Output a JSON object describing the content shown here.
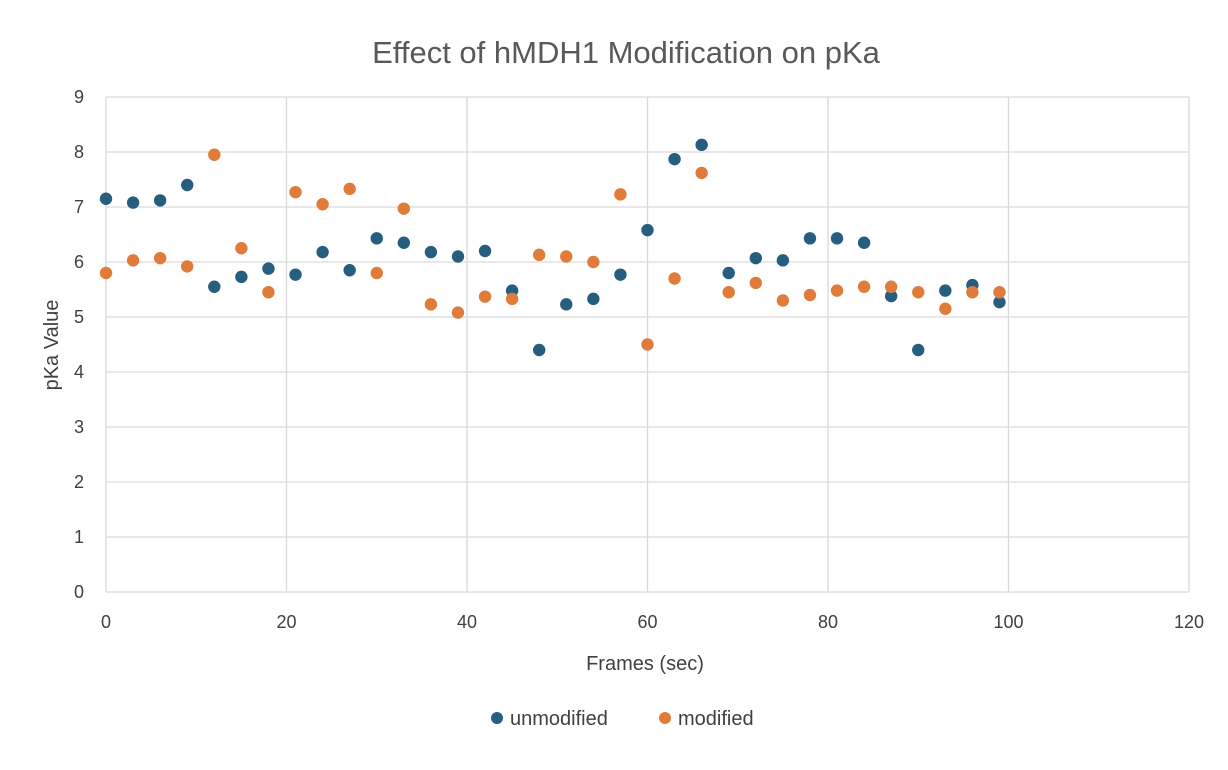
{
  "chart_data": {
    "type": "scatter",
    "title": "Effect of hMDH1 Modification on pKa",
    "xlabel": "Frames (sec)",
    "ylabel": "pKa Value",
    "xlim": [
      0,
      120
    ],
    "ylim": [
      0,
      9
    ],
    "xticks": [
      "0",
      "20",
      "40",
      "60",
      "80",
      "100",
      "120"
    ],
    "yticks": [
      "0",
      "1",
      "2",
      "3",
      "4",
      "5",
      "6",
      "7",
      "8",
      "9"
    ],
    "grid": true,
    "legend_position": "bottom",
    "series": [
      {
        "name": "unmodified",
        "color": "#255e7f",
        "points": [
          [
            0,
            7.15
          ],
          [
            3,
            7.08
          ],
          [
            6,
            7.12
          ],
          [
            9,
            7.4
          ],
          [
            12,
            5.55
          ],
          [
            15,
            5.73
          ],
          [
            18,
            5.88
          ],
          [
            21,
            5.77
          ],
          [
            24,
            6.18
          ],
          [
            27,
            5.85
          ],
          [
            30,
            6.43
          ],
          [
            33,
            6.35
          ],
          [
            36,
            6.18
          ],
          [
            39,
            6.1
          ],
          [
            42,
            6.2
          ],
          [
            45,
            5.48
          ],
          [
            48,
            4.4
          ],
          [
            51,
            5.23
          ],
          [
            54,
            5.33
          ],
          [
            57,
            5.77
          ],
          [
            60,
            6.58
          ],
          [
            63,
            7.87
          ],
          [
            66,
            8.13
          ],
          [
            69,
            5.8
          ],
          [
            72,
            6.07
          ],
          [
            75,
            6.03
          ],
          [
            78,
            6.43
          ],
          [
            81,
            6.43
          ],
          [
            84,
            6.35
          ],
          [
            87,
            5.38
          ],
          [
            90,
            4.4
          ],
          [
            93,
            5.48
          ],
          [
            96,
            5.58
          ],
          [
            99,
            5.27
          ]
        ]
      },
      {
        "name": "modified",
        "color": "#e07b39",
        "points": [
          [
            0,
            5.8
          ],
          [
            3,
            6.03
          ],
          [
            6,
            6.07
          ],
          [
            9,
            5.92
          ],
          [
            12,
            7.95
          ],
          [
            15,
            6.25
          ],
          [
            18,
            5.45
          ],
          [
            21,
            7.27
          ],
          [
            24,
            7.05
          ],
          [
            27,
            7.33
          ],
          [
            30,
            5.8
          ],
          [
            33,
            6.97
          ],
          [
            36,
            5.23
          ],
          [
            39,
            5.08
          ],
          [
            42,
            5.37
          ],
          [
            45,
            5.33
          ],
          [
            48,
            6.13
          ],
          [
            51,
            6.1
          ],
          [
            54,
            6.0
          ],
          [
            57,
            7.23
          ],
          [
            60,
            4.5
          ],
          [
            63,
            5.7
          ],
          [
            66,
            7.62
          ],
          [
            69,
            5.45
          ],
          [
            72,
            5.62
          ],
          [
            75,
            5.3
          ],
          [
            78,
            5.4
          ],
          [
            81,
            5.48
          ],
          [
            84,
            5.55
          ],
          [
            87,
            5.55
          ],
          [
            90,
            5.45
          ],
          [
            93,
            5.15
          ],
          [
            96,
            5.45
          ],
          [
            99,
            5.45
          ]
        ]
      }
    ]
  }
}
